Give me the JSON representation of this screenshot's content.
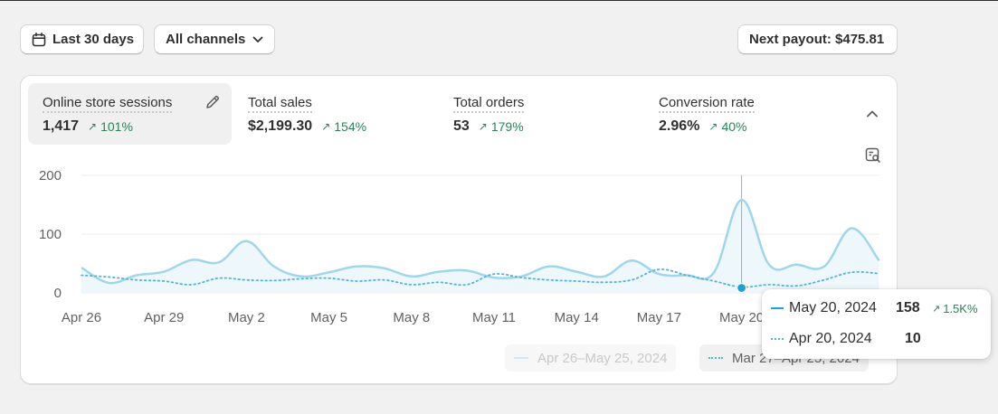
{
  "toolbar": {
    "date_range_label": "Last 30 days",
    "channel_label": "All channels",
    "payout_label": "Next payout: $475.81"
  },
  "metrics": [
    {
      "label": "Online store sessions",
      "value": "1,417",
      "change": "101%"
    },
    {
      "label": "Total sales",
      "value": "$2,199.30",
      "change": "154%"
    },
    {
      "label": "Total orders",
      "value": "53",
      "change": "179%"
    },
    {
      "label": "Conversion rate",
      "value": "2.96%",
      "change": "40%"
    }
  ],
  "colors": {
    "current_series": "#9ed6ee",
    "current_fill": "#eef8fc",
    "previous_series": "#4fb3dd",
    "highlight_dot": "#1ba1dc",
    "positive": "#29845a"
  },
  "chart_data": {
    "type": "area",
    "x": [
      "Apr 26",
      "Apr 27",
      "Apr 28",
      "Apr 29",
      "Apr 30",
      "May 1",
      "May 2",
      "May 3",
      "May 4",
      "May 5",
      "May 6",
      "May 7",
      "May 8",
      "May 9",
      "May 10",
      "May 11",
      "May 12",
      "May 13",
      "May 14",
      "May 15",
      "May 16",
      "May 17",
      "May 18",
      "May 19",
      "May 20",
      "May 21",
      "May 22",
      "May 23",
      "May 24",
      "May 25"
    ],
    "x_tick_labels": [
      "Apr 26",
      "Apr 29",
      "May 2",
      "May 5",
      "May 8",
      "May 11",
      "May 14",
      "May 17",
      "May 20"
    ],
    "y_tick_labels": [
      "200",
      "100",
      "0"
    ],
    "ylim": [
      0,
      200
    ],
    "grid": true,
    "series": [
      {
        "name": "Apr 26–May 25, 2024",
        "values": [
          43,
          17,
          30,
          36,
          56,
          52,
          88,
          45,
          28,
          35,
          45,
          42,
          28,
          36,
          38,
          26,
          28,
          45,
          36,
          28,
          55,
          32,
          30,
          35,
          158,
          48,
          48,
          45,
          110,
          55
        ]
      },
      {
        "name": "Mar 27–Apr 25, 2024",
        "values": [
          30,
          27,
          22,
          20,
          14,
          25,
          22,
          21,
          24,
          25,
          20,
          22,
          14,
          18,
          14,
          32,
          26,
          22,
          20,
          18,
          22,
          40,
          30,
          20,
          10,
          14,
          12,
          22,
          35,
          33
        ]
      }
    ],
    "highlight": {
      "current_date": "May 20, 2024",
      "current_value": "158",
      "current_change": "1.5K%",
      "previous_date": "Apr 20, 2024",
      "previous_value": "10"
    }
  }
}
